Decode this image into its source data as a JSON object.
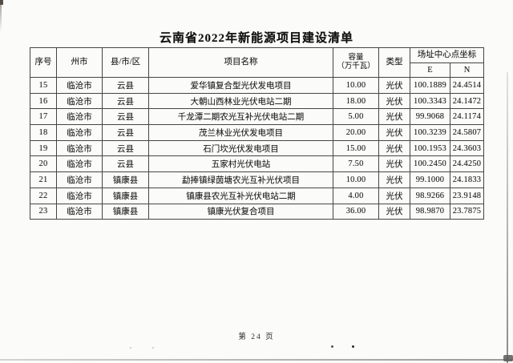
{
  "page": {
    "title": "云南省2022年新能源项目建设清单",
    "footer": "第 24 页"
  },
  "table": {
    "headers": {
      "index": "序号",
      "city": "州市",
      "county": "县/市/区",
      "project": "项目名称",
      "capacity_top": "容量",
      "capacity_bottom": "（万千瓦）",
      "type": "类型",
      "coords": "场址中心点坐标",
      "e": "E",
      "n": "N"
    },
    "rows": [
      {
        "index": "15",
        "city": "临沧市",
        "county": "云县",
        "project": "爱华镇复合型光伏发电项目",
        "capacity": "10.00",
        "type": "光伏",
        "e": "100.1889",
        "n": "24.4514"
      },
      {
        "index": "16",
        "city": "临沧市",
        "county": "云县",
        "project": "大朝山西林业光伏电站二期",
        "capacity": "18.00",
        "type": "光伏",
        "e": "100.3343",
        "n": "24.1472"
      },
      {
        "index": "17",
        "city": "临沧市",
        "county": "云县",
        "project": "千龙潭二期农光互补光伏电站二期",
        "capacity": "5.00",
        "type": "光伏",
        "e": "99.9068",
        "n": "24.1174"
      },
      {
        "index": "18",
        "city": "临沧市",
        "county": "云县",
        "project": "茂兰林业光伏发电项目",
        "capacity": "20.00",
        "type": "光伏",
        "e": "100.3239",
        "n": "24.5807"
      },
      {
        "index": "19",
        "city": "临沧市",
        "county": "云县",
        "project": "石门坎光伏发电项目",
        "capacity": "15.00",
        "type": "光伏",
        "e": "100.1953",
        "n": "24.3603"
      },
      {
        "index": "20",
        "city": "临沧市",
        "county": "云县",
        "project": "五家村光伏电站",
        "capacity": "7.50",
        "type": "光伏",
        "e": "100.2450",
        "n": "24.4250"
      },
      {
        "index": "21",
        "city": "临沧市",
        "county": "镇康县",
        "project": "勐捧镇绿茵塘农光互补光伏项目",
        "capacity": "10.00",
        "type": "光伏",
        "e": "99.1000",
        "n": "24.1833"
      },
      {
        "index": "22",
        "city": "临沧市",
        "county": "镇康县",
        "project": "镇康县农光互补光伏电站二期",
        "capacity": "4.00",
        "type": "光伏",
        "e": "98.9266",
        "n": "23.9148"
      },
      {
        "index": "23",
        "city": "临沧市",
        "county": "镇康县",
        "project": "镇康光伏复合项目",
        "capacity": "36.00",
        "type": "光伏",
        "e": "98.9870",
        "n": "23.7875"
      }
    ]
  }
}
